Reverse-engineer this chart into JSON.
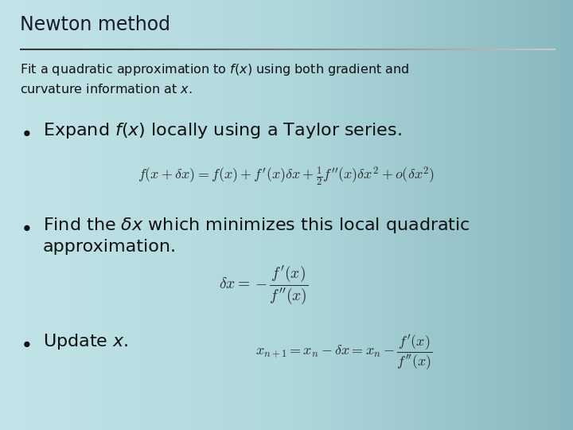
{
  "title": "Newton method",
  "bg_color_top": "#b8dfe3",
  "bg_color_bottom": "#8ab8bf",
  "title_color": "#1a1a2a",
  "text_color": "#111111",
  "title_fontsize": 17,
  "subtitle_fontsize": 11.5,
  "bullet_fontsize": 16,
  "formula_fontsize": 12,
  "line_color": "#333344",
  "subtitle": "Fit a quadratic approximation to $f(x)$ using both gradient and\ncurvature information at $x$.",
  "bullet1": "Expand $f(x)$ locally using a Taylor series.",
  "formula1": "$f(x + \\delta x) = f(x) + f'(x)\\delta x + \\frac{1}{2}f''(x)\\delta x^2 + o(\\delta x^2)$",
  "bullet2_line1": "Find the $\\delta x$ which minimizes this local quadratic",
  "bullet2_line2": "approximation.",
  "formula2": "$\\delta x = -\\dfrac{f'(x)}{f''(x)}$",
  "bullet3": "Update $x$.",
  "formula3": "$x_{n+1} = x_n - \\delta x = x_n - \\dfrac{f'(x)}{f''(x)}$"
}
